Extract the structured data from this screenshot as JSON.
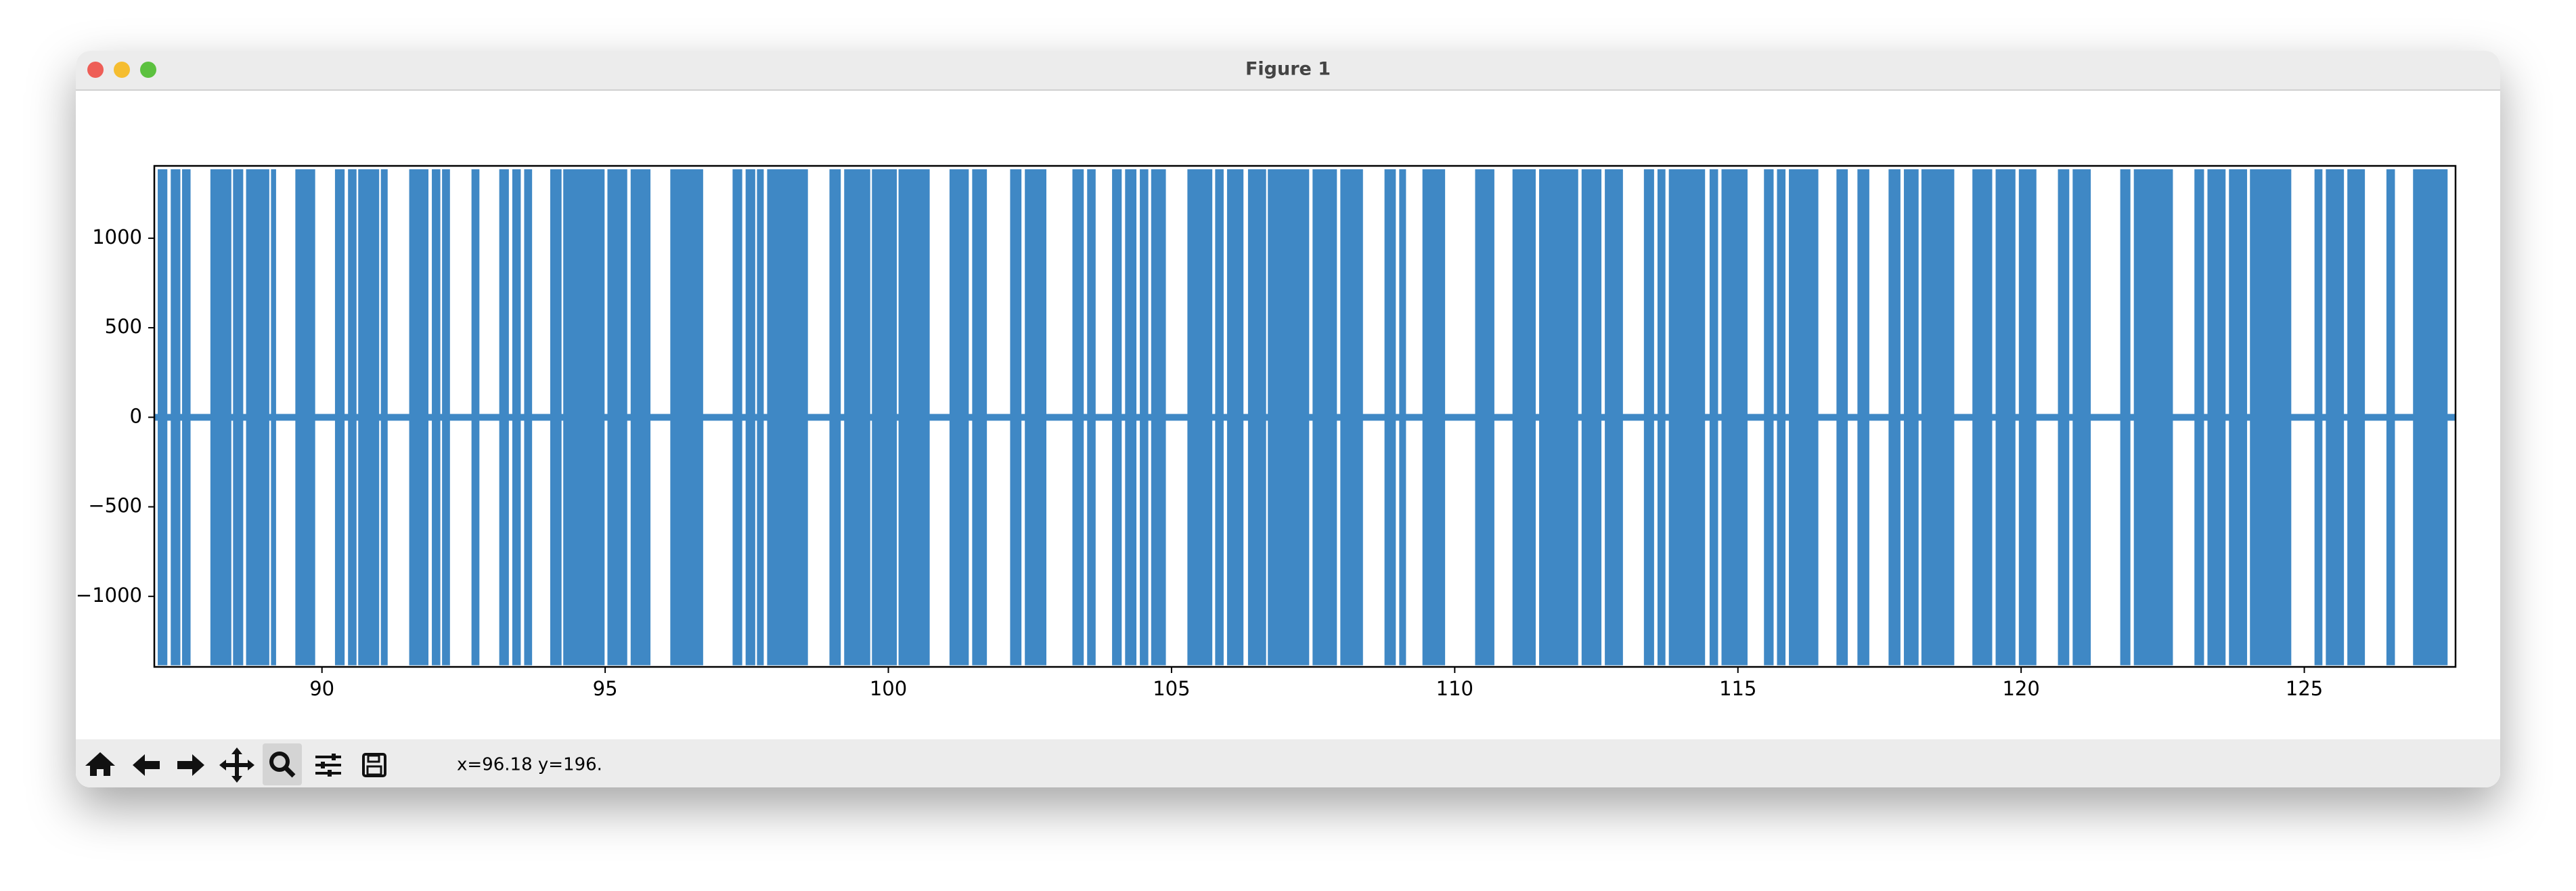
{
  "window_title": "Figure 1",
  "status": "x=96.18 y=196.",
  "chart_data": {
    "type": "line",
    "color": "#3f88c5",
    "amplitude": 1385,
    "baseline": 0,
    "bursts": [
      [
        87.1,
        87.27
      ],
      [
        87.33,
        87.5
      ],
      [
        87.53,
        87.68
      ],
      [
        88.03,
        88.4
      ],
      [
        88.43,
        88.61
      ],
      [
        88.66,
        89.07
      ],
      [
        89.1,
        89.19
      ],
      [
        89.53,
        89.88
      ],
      [
        90.23,
        90.4
      ],
      [
        90.46,
        90.61
      ],
      [
        90.64,
        91.01
      ],
      [
        91.04,
        91.16
      ],
      [
        91.54,
        91.88
      ],
      [
        91.94,
        92.09
      ],
      [
        92.12,
        92.26
      ],
      [
        92.64,
        92.78
      ],
      [
        93.13,
        93.3
      ],
      [
        93.36,
        93.51
      ],
      [
        93.57,
        93.71
      ],
      [
        94.03,
        94.23
      ],
      [
        94.26,
        94.99
      ],
      [
        95.04,
        95.39
      ],
      [
        95.45,
        95.8
      ],
      [
        96.15,
        96.73
      ],
      [
        97.25,
        97.42
      ],
      [
        97.48,
        97.65
      ],
      [
        97.68,
        97.8
      ],
      [
        97.86,
        98.58
      ],
      [
        98.96,
        99.16
      ],
      [
        99.22,
        99.68
      ],
      [
        99.71,
        100.15
      ],
      [
        100.18,
        100.73
      ],
      [
        101.08,
        101.42
      ],
      [
        101.48,
        101.74
      ],
      [
        102.15,
        102.35
      ],
      [
        102.41,
        102.79
      ],
      [
        103.25,
        103.45
      ],
      [
        103.51,
        103.66
      ],
      [
        103.95,
        104.12
      ],
      [
        104.18,
        104.38
      ],
      [
        104.44,
        104.59
      ],
      [
        104.64,
        104.9
      ],
      [
        105.28,
        105.72
      ],
      [
        105.77,
        105.92
      ],
      [
        105.98,
        106.27
      ],
      [
        106.35,
        106.67
      ],
      [
        106.7,
        107.43
      ],
      [
        107.49,
        107.92
      ],
      [
        107.98,
        108.38
      ],
      [
        108.76,
        108.96
      ],
      [
        109.02,
        109.14
      ],
      [
        109.43,
        109.83
      ],
      [
        110.36,
        110.7
      ],
      [
        111.02,
        111.43
      ],
      [
        111.49,
        112.18
      ],
      [
        112.24,
        112.59
      ],
      [
        112.65,
        112.97
      ],
      [
        113.34,
        113.52
      ],
      [
        113.58,
        113.72
      ],
      [
        113.78,
        114.42
      ],
      [
        114.5,
        114.65
      ],
      [
        114.71,
        115.17
      ],
      [
        115.46,
        115.63
      ],
      [
        115.69,
        115.84
      ],
      [
        115.9,
        116.42
      ],
      [
        116.74,
        116.94
      ],
      [
        117.11,
        117.32
      ],
      [
        117.66,
        117.87
      ],
      [
        117.93,
        118.19
      ],
      [
        118.24,
        118.82
      ],
      [
        119.14,
        119.49
      ],
      [
        119.55,
        119.9
      ],
      [
        119.96,
        120.27
      ],
      [
        120.65,
        120.85
      ],
      [
        120.91,
        121.23
      ],
      [
        121.75,
        121.93
      ],
      [
        121.99,
        122.68
      ],
      [
        123.06,
        123.23
      ],
      [
        123.29,
        123.61
      ],
      [
        123.67,
        123.99
      ],
      [
        124.04,
        124.77
      ],
      [
        125.18,
        125.32
      ],
      [
        125.38,
        125.7
      ],
      [
        125.76,
        126.07
      ],
      [
        126.45,
        126.6
      ],
      [
        126.92,
        127.53
      ]
    ],
    "xlim": [
      87.04,
      127.67
    ],
    "ylim": [
      -1394,
      1404
    ],
    "xticks": [
      90,
      95,
      100,
      105,
      110,
      115,
      120,
      125
    ],
    "yticks": [
      {
        "value": -1000,
        "label": "−1000"
      },
      {
        "value": -500,
        "label": "−500"
      },
      0,
      500,
      1000
    ]
  }
}
